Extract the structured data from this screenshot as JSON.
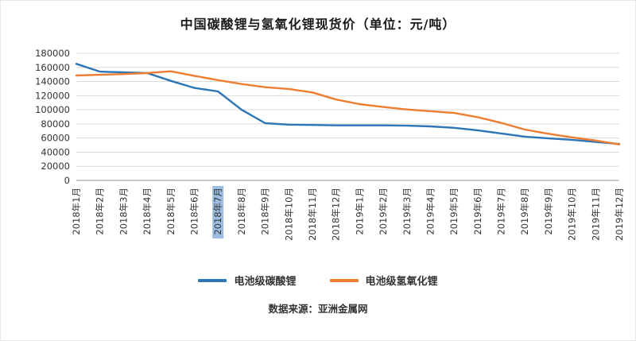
{
  "chart_data": {
    "type": "line",
    "title": "中国碳酸锂与氢氧化锂现货价（单位：元/吨）",
    "x_labels": [
      "2018年1月",
      "2018年2月",
      "2018年3月",
      "2018年4月",
      "2018年5月",
      "2018年6月",
      "2018年7月",
      "2018年8月",
      "2018年9月",
      "2018年10月",
      "2018年11月",
      "2018年12月",
      "2019年1月",
      "2019年2月",
      "2019年3月",
      "2019年4月",
      "2019年5月",
      "2019年6月",
      "2019年7月",
      "2019年8月",
      "2019年9月",
      "2019年10月",
      "2019年11月",
      "2019年12月"
    ],
    "y_ticks": [
      0,
      20000,
      40000,
      60000,
      80000,
      100000,
      120000,
      140000,
      160000,
      180000
    ],
    "ylim": [
      0,
      180000
    ],
    "grid": true,
    "legend_position": "bottom",
    "series": [
      {
        "id": "battery-grade-lithium-carbonate",
        "name": "电池级碳酸锂",
        "color": "#2e75b6",
        "values": [
          165000,
          154000,
          153000,
          152000,
          141000,
          131000,
          126000,
          100000,
          81000,
          79000,
          78500,
          78000,
          78000,
          78000,
          77500,
          76500,
          74500,
          71000,
          66500,
          62000,
          59500,
          57500,
          54500,
          51500
        ]
      },
      {
        "id": "battery-grade-lithium-hydroxide",
        "name": "电池级氢氧化锂",
        "color": "#ed7d31",
        "values": [
          148500,
          149500,
          150500,
          152000,
          154500,
          148000,
          142000,
          136500,
          132000,
          129500,
          124500,
          114500,
          108000,
          104000,
          100500,
          98000,
          95500,
          89500,
          81500,
          72000,
          66000,
          61000,
          56500,
          51000
        ]
      }
    ]
  },
  "highlighted_x_label": "2018年7月",
  "highlight_color": "#4a86c8",
  "axis_label_color": "#333333",
  "grid_color": "#d9d9d9",
  "axis_line_color": "#9a9a9a",
  "source": "数据来源：亚洲金属网"
}
